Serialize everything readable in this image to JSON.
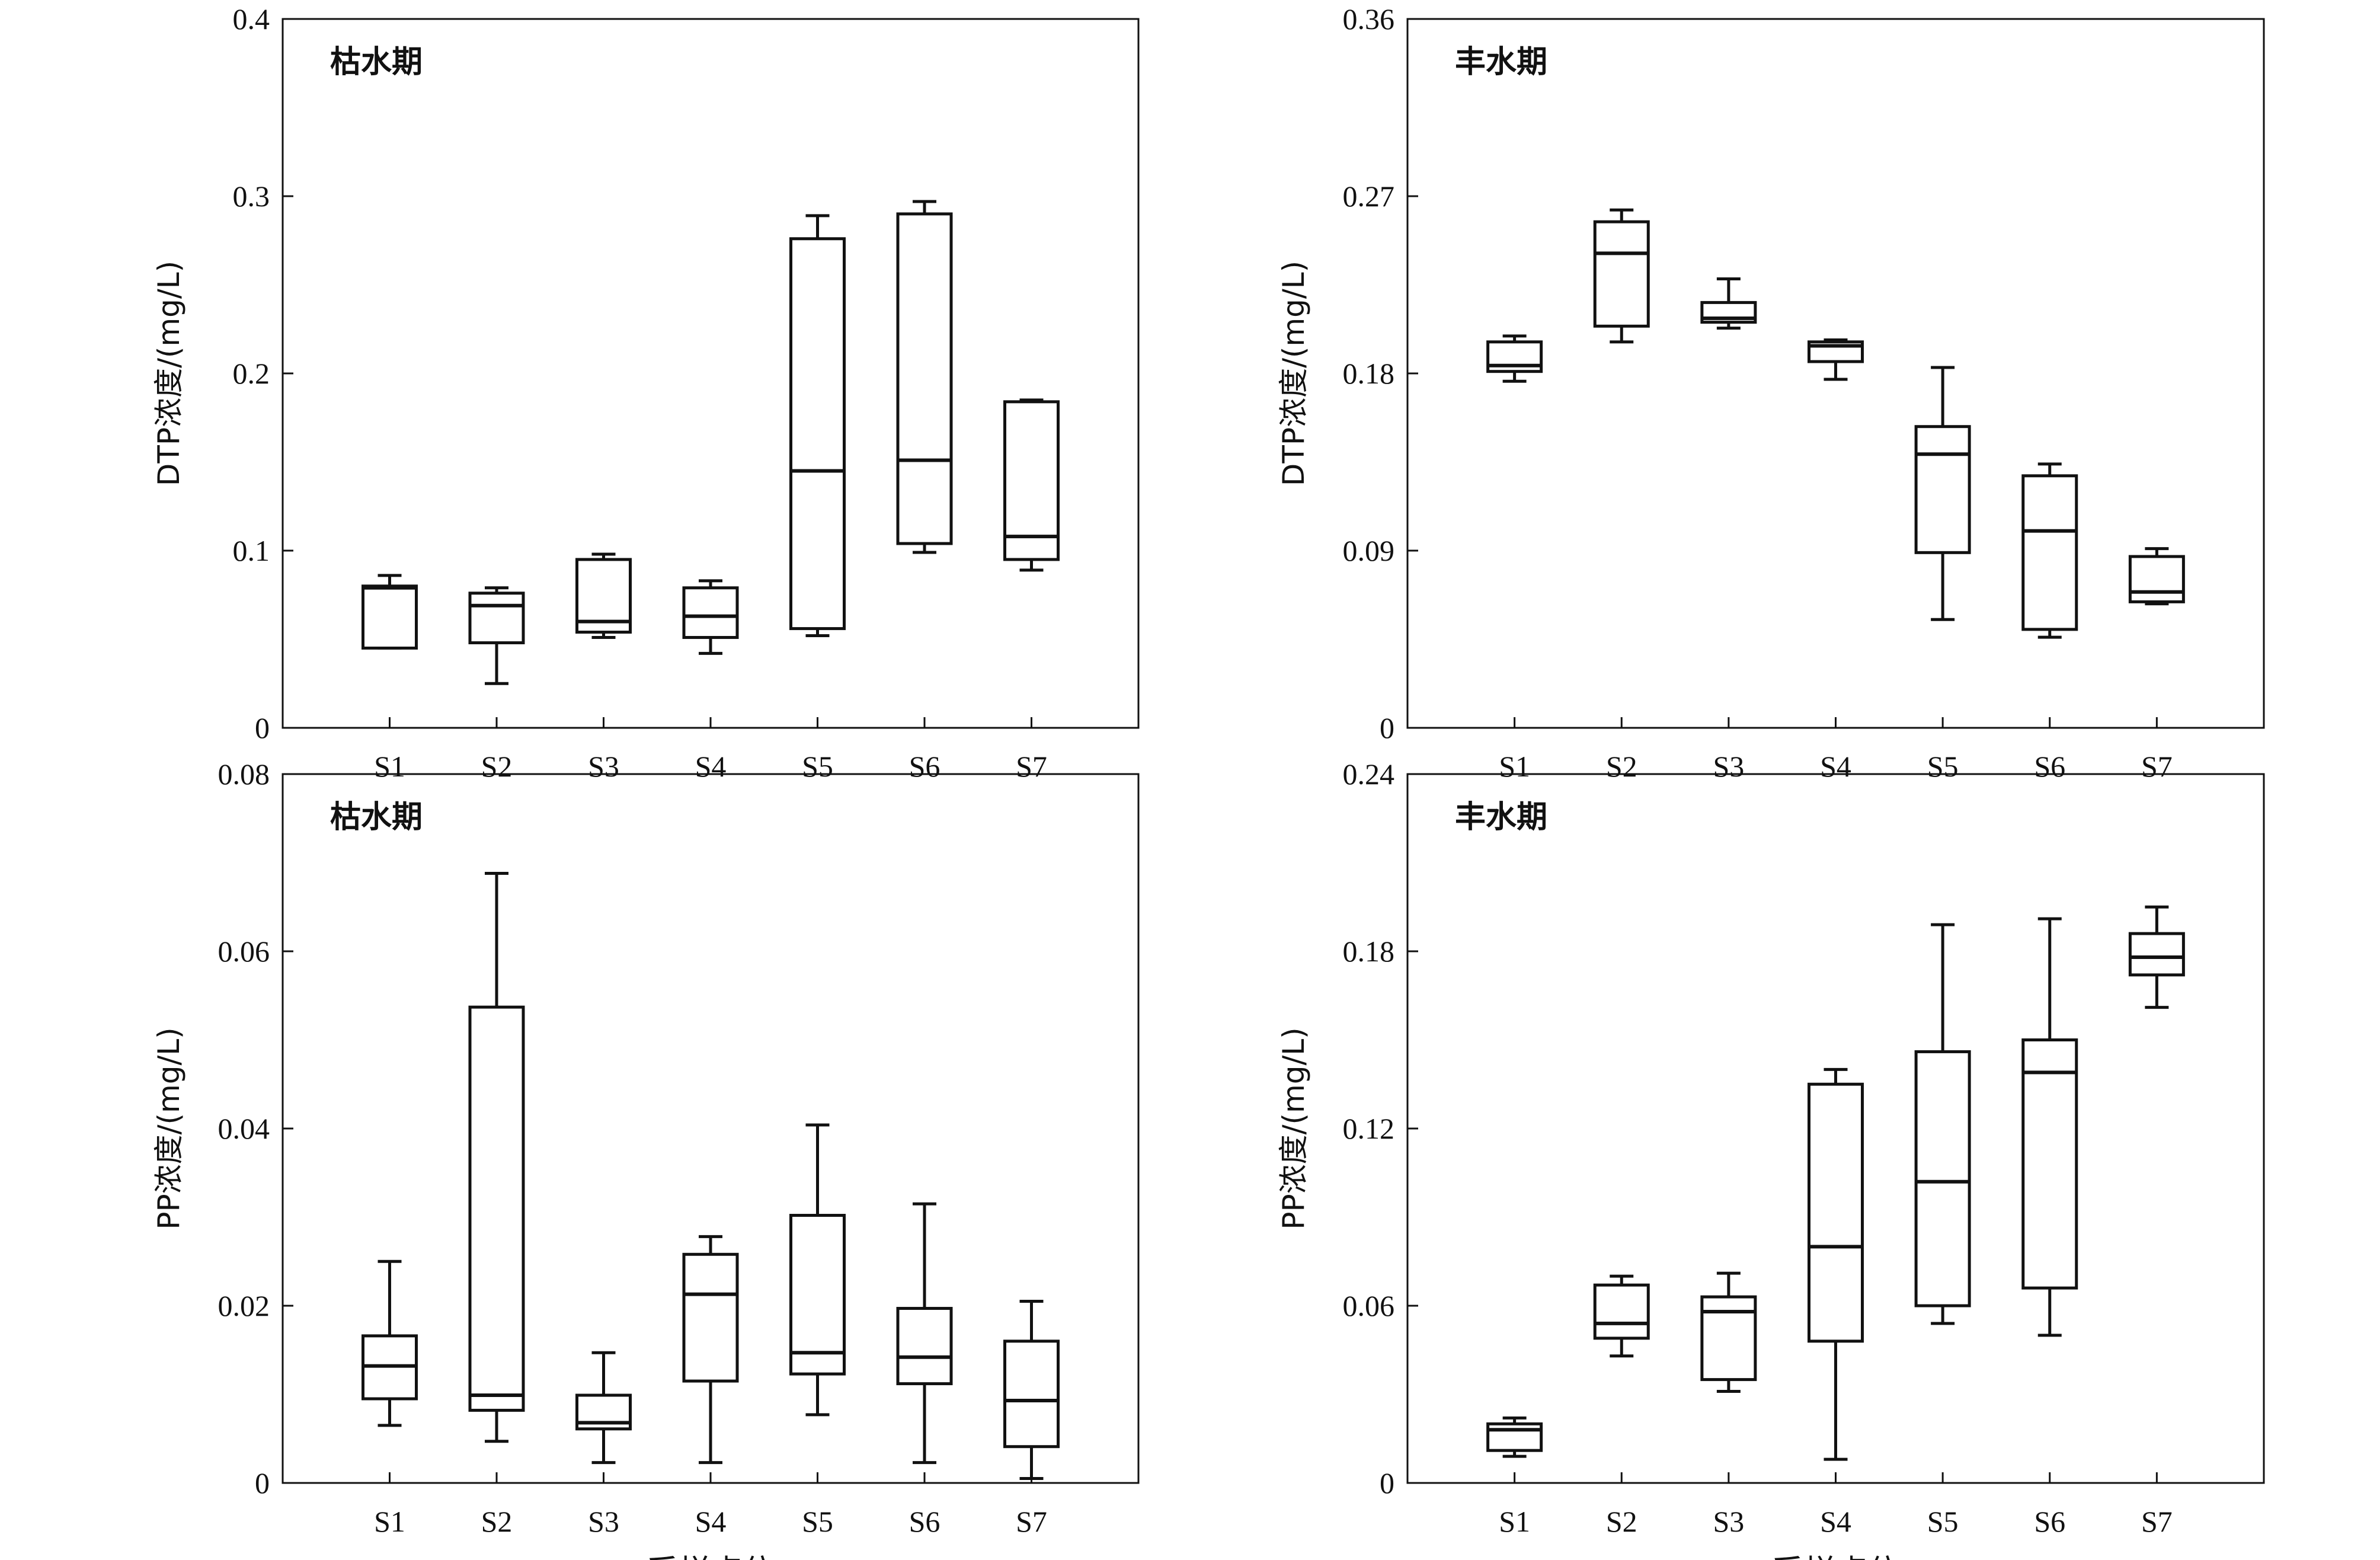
{
  "figure": {
    "xlabel_shared": "采样点位"
  },
  "chart_data": [
    {
      "type": "boxplot",
      "title": "枯水期",
      "ylabel": "DTP浓度/(mg/L)",
      "xlabel": "",
      "ylim": [
        0,
        0.4
      ],
      "yticks": [
        "0",
        "0.1",
        "0.2",
        "0.3",
        "0.4"
      ],
      "ytick_values": [
        0,
        0.1,
        0.2,
        0.3,
        0.4
      ],
      "categories": [
        "S1",
        "S2",
        "S3",
        "S4",
        "S5",
        "S6",
        "S7"
      ],
      "boxes": [
        {
          "whisker_low": 0.045,
          "q1": 0.045,
          "median": 0.079,
          "q3": 0.08,
          "whisker_high": 0.086
        },
        {
          "whisker_low": 0.025,
          "q1": 0.048,
          "median": 0.069,
          "q3": 0.076,
          "whisker_high": 0.079
        },
        {
          "whisker_low": 0.051,
          "q1": 0.054,
          "median": 0.06,
          "q3": 0.095,
          "whisker_high": 0.098
        },
        {
          "whisker_low": 0.042,
          "q1": 0.051,
          "median": 0.063,
          "q3": 0.079,
          "whisker_high": 0.083
        },
        {
          "whisker_low": 0.052,
          "q1": 0.056,
          "median": 0.145,
          "q3": 0.276,
          "whisker_high": 0.289
        },
        {
          "whisker_low": 0.099,
          "q1": 0.104,
          "median": 0.151,
          "q3": 0.29,
          "whisker_high": 0.297
        },
        {
          "whisker_low": 0.089,
          "q1": 0.095,
          "median": 0.108,
          "q3": 0.184,
          "whisker_high": 0.185
        }
      ],
      "grid": false
    },
    {
      "type": "boxplot",
      "title": "丰水期",
      "ylabel": "DTP浓度/(mg/L)",
      "xlabel": "",
      "ylim": [
        0,
        0.36
      ],
      "yticks": [
        "0",
        "0.09",
        "0.18",
        "0.27",
        "0.36"
      ],
      "ytick_values": [
        0,
        0.09,
        0.18,
        0.27,
        0.36
      ],
      "categories": [
        "S1",
        "S2",
        "S3",
        "S4",
        "S5",
        "S6",
        "S7"
      ],
      "boxes": [
        {
          "whisker_low": 0.176,
          "q1": 0.181,
          "median": 0.184,
          "q3": 0.196,
          "whisker_high": 0.199
        },
        {
          "whisker_low": 0.196,
          "q1": 0.204,
          "median": 0.241,
          "q3": 0.257,
          "whisker_high": 0.263
        },
        {
          "whisker_low": 0.203,
          "q1": 0.206,
          "median": 0.208,
          "q3": 0.216,
          "whisker_high": 0.228
        },
        {
          "whisker_low": 0.177,
          "q1": 0.186,
          "median": 0.194,
          "q3": 0.196,
          "whisker_high": 0.197
        },
        {
          "whisker_low": 0.055,
          "q1": 0.089,
          "median": 0.139,
          "q3": 0.153,
          "whisker_high": 0.183
        },
        {
          "whisker_low": 0.046,
          "q1": 0.05,
          "median": 0.1,
          "q3": 0.128,
          "whisker_high": 0.134
        },
        {
          "whisker_low": 0.063,
          "q1": 0.064,
          "median": 0.069,
          "q3": 0.087,
          "whisker_high": 0.091
        }
      ],
      "grid": false
    },
    {
      "type": "boxplot",
      "title": "枯水期",
      "ylabel": "PP浓度/(mg/L)",
      "xlabel": "采样点位",
      "ylim": [
        0,
        0.08
      ],
      "yticks": [
        "0",
        "0.02",
        "0.04",
        "0.06",
        "0.08"
      ],
      "ytick_values": [
        0,
        0.02,
        0.04,
        0.06,
        0.08
      ],
      "categories": [
        "S1",
        "S2",
        "S3",
        "S4",
        "S5",
        "S6",
        "S7"
      ],
      "boxes": [
        {
          "whisker_low": 0.0065,
          "q1": 0.0095,
          "median": 0.0132,
          "q3": 0.0166,
          "whisker_high": 0.025
        },
        {
          "whisker_low": 0.0047,
          "q1": 0.0082,
          "median": 0.0099,
          "q3": 0.0537,
          "whisker_high": 0.0688
        },
        {
          "whisker_low": 0.0023,
          "q1": 0.0061,
          "median": 0.0068,
          "q3": 0.0099,
          "whisker_high": 0.0147
        },
        {
          "whisker_low": 0.0023,
          "q1": 0.0115,
          "median": 0.0213,
          "q3": 0.0258,
          "whisker_high": 0.0278
        },
        {
          "whisker_low": 0.0077,
          "q1": 0.0123,
          "median": 0.0147,
          "q3": 0.0302,
          "whisker_high": 0.0404
        },
        {
          "whisker_low": 0.0023,
          "q1": 0.0112,
          "median": 0.0142,
          "q3": 0.0197,
          "whisker_high": 0.0315
        },
        {
          "whisker_low": 0.0005,
          "q1": 0.0041,
          "median": 0.0093,
          "q3": 0.016,
          "whisker_high": 0.0205
        }
      ],
      "grid": false
    },
    {
      "type": "boxplot",
      "title": "丰水期",
      "ylabel": "PP浓度/(mg/L)",
      "xlabel": "采样点位",
      "ylim": [
        0,
        0.24
      ],
      "yticks": [
        "0",
        "0.06",
        "0.12",
        "0.18",
        "0.24"
      ],
      "ytick_values": [
        0,
        0.06,
        0.12,
        0.18,
        0.24
      ],
      "categories": [
        "S1",
        "S2",
        "S3",
        "S4",
        "S5",
        "S6",
        "S7"
      ],
      "boxes": [
        {
          "whisker_low": 0.009,
          "q1": 0.011,
          "median": 0.018,
          "q3": 0.02,
          "whisker_high": 0.022
        },
        {
          "whisker_low": 0.043,
          "q1": 0.049,
          "median": 0.054,
          "q3": 0.067,
          "whisker_high": 0.07
        },
        {
          "whisker_low": 0.031,
          "q1": 0.035,
          "median": 0.058,
          "q3": 0.063,
          "whisker_high": 0.071
        },
        {
          "whisker_low": 0.008,
          "q1": 0.048,
          "median": 0.08,
          "q3": 0.135,
          "whisker_high": 0.14
        },
        {
          "whisker_low": 0.054,
          "q1": 0.06,
          "median": 0.102,
          "q3": 0.146,
          "whisker_high": 0.189
        },
        {
          "whisker_low": 0.05,
          "q1": 0.066,
          "median": 0.139,
          "q3": 0.15,
          "whisker_high": 0.191
        },
        {
          "whisker_low": 0.161,
          "q1": 0.172,
          "median": 0.178,
          "q3": 0.186,
          "whisker_high": 0.195
        }
      ],
      "grid": false
    }
  ]
}
